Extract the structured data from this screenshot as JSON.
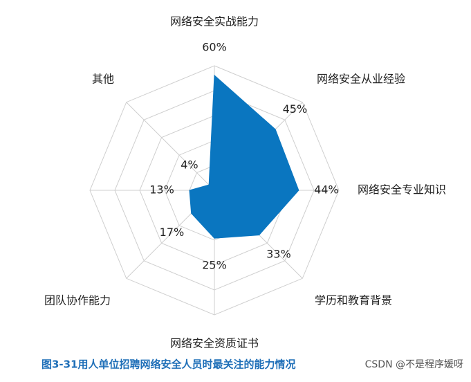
{
  "chart_data": {
    "type": "radar",
    "categories": [
      "网络安全实战能力",
      "网络安全从业经验",
      "网络安全专业知识",
      "学历和教育背景",
      "网络安全资质证书",
      "团队协作能力",
      null,
      "其他"
    ],
    "values": [
      60,
      45,
      44,
      33,
      25,
      17,
      13,
      4
    ],
    "value_labels": [
      "60%",
      "45%",
      "44%",
      "33%",
      "25%",
      "17%",
      "13%",
      "4%"
    ],
    "color": "#0a76c0",
    "ylim": [
      0,
      65
    ],
    "caption": "图3-31用人单位招聘网络安全人员时最关注的能力情况",
    "watermark": "CSDN @不是程序媛呀"
  }
}
